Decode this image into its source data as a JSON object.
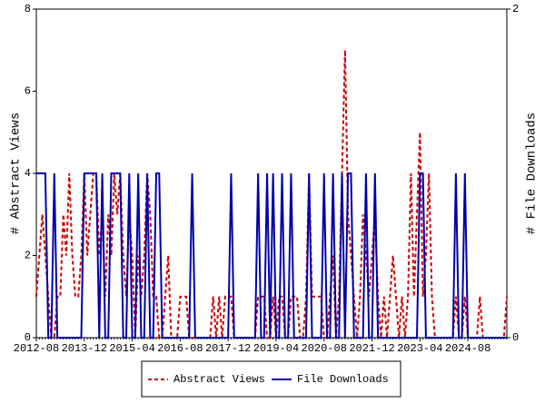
{
  "chart_data": {
    "type": "line",
    "ylabel": "# Abstract Views",
    "y2label": "# File Downloads",
    "categories": [
      "2012-08",
      null,
      null,
      null,
      null,
      null,
      null,
      null,
      null,
      null,
      null,
      null,
      null,
      null,
      null,
      null,
      "2013-12",
      null,
      null,
      null,
      null,
      null,
      null,
      null,
      null,
      null,
      null,
      null,
      null,
      null,
      null,
      null,
      "2015-04",
      null,
      null,
      null,
      null,
      null,
      null,
      null,
      null,
      null,
      null,
      null,
      null,
      null,
      null,
      null,
      "2016-08",
      null,
      null,
      null,
      null,
      null,
      null,
      null,
      null,
      null,
      null,
      null,
      null,
      null,
      null,
      null,
      "2017-12",
      null,
      null,
      null,
      null,
      null,
      null,
      null,
      null,
      null,
      null,
      null,
      null,
      null,
      null,
      null,
      "2019-04",
      null,
      null,
      null,
      null,
      null,
      null,
      null,
      null,
      null,
      null,
      null,
      null,
      null,
      null,
      null,
      "2020-08",
      null,
      null,
      null,
      null,
      null,
      null,
      null,
      null,
      null,
      null,
      null,
      null,
      null,
      null,
      null,
      "2021-12",
      null,
      null,
      null,
      null,
      null,
      null,
      null,
      null,
      null,
      null,
      null,
      null,
      null,
      null,
      null,
      "2023-04",
      null,
      null,
      null,
      null,
      null,
      null,
      null,
      null,
      null,
      null,
      null,
      null,
      null,
      null,
      null,
      "2024-08",
      null,
      null,
      null,
      null,
      null,
      null,
      null,
      null,
      null,
      null,
      null,
      null,
      null
    ],
    "series": [
      {
        "name": "Abstract Views",
        "color": "#cc0000",
        "dash": true,
        "values": [
          1,
          2,
          3,
          2,
          1,
          0,
          0,
          1,
          1,
          3,
          2,
          4,
          2,
          1,
          1,
          2,
          4,
          2,
          3,
          4,
          4,
          2,
          3,
          1,
          3,
          2,
          4,
          3,
          4,
          2,
          1,
          3,
          2,
          0,
          2,
          1,
          2,
          4,
          3,
          1,
          1,
          0,
          0,
          1,
          2,
          0,
          0,
          0,
          1,
          1,
          1,
          0,
          0,
          0,
          0,
          0,
          0,
          0,
          0,
          1,
          0,
          1,
          0,
          1,
          1,
          1,
          0,
          0,
          0,
          0,
          0,
          0,
          0,
          0,
          1,
          1,
          1,
          0,
          0,
          1,
          0,
          1,
          1,
          0,
          0,
          1,
          1,
          1,
          0,
          0,
          1,
          4,
          1,
          1,
          1,
          1,
          0,
          0,
          1,
          2,
          0,
          1,
          4,
          7,
          3,
          2,
          1,
          0,
          1,
          3,
          2,
          1,
          2,
          3,
          1,
          0,
          1,
          0,
          1,
          2,
          1,
          0,
          1,
          0,
          1,
          4,
          1,
          3,
          5,
          1,
          2,
          4,
          1,
          0,
          0,
          0,
          0,
          0,
          0,
          0,
          1,
          0,
          0,
          1,
          0,
          0,
          0,
          0,
          1,
          0,
          0,
          0,
          0,
          0,
          0,
          0,
          0,
          1
        ]
      },
      {
        "name": "File Downloads",
        "color": "#0000aa",
        "dash": false,
        "axis": "y2",
        "values": [
          1,
          1,
          1,
          1,
          0,
          0,
          1,
          0,
          0,
          0,
          0,
          0,
          0,
          0,
          0,
          0,
          1,
          1,
          1,
          1,
          1,
          0,
          1,
          0,
          0,
          1,
          1,
          1,
          1,
          0,
          0,
          1,
          0,
          0,
          1,
          0,
          0,
          1,
          0,
          0,
          1,
          1,
          0,
          0,
          0,
          0,
          0,
          0,
          0,
          0,
          0,
          0,
          1,
          0,
          0,
          0,
          0,
          0,
          0,
          0,
          0,
          0,
          0,
          0,
          0,
          1,
          0,
          0,
          0,
          0,
          0,
          0,
          0,
          0,
          1,
          0,
          0,
          1,
          0,
          1,
          0,
          0,
          1,
          0,
          0,
          1,
          0,
          0,
          0,
          0,
          0,
          1,
          0,
          0,
          0,
          0,
          1,
          0,
          0,
          1,
          0,
          0,
          1,
          0,
          1,
          1,
          0,
          0,
          0,
          0,
          1,
          0,
          0,
          1,
          0,
          0,
          0,
          0,
          0,
          0,
          0,
          0,
          0,
          0,
          0,
          0,
          0,
          0,
          1,
          1,
          0,
          0,
          0,
          0,
          0,
          0,
          0,
          0,
          0,
          0,
          1,
          0,
          0,
          1,
          0,
          0,
          0,
          0,
          0,
          0,
          0,
          0,
          0,
          0,
          0,
          0,
          0,
          0
        ]
      }
    ],
    "ylim": [
      0,
      8
    ],
    "yticks": [
      0,
      2,
      4,
      6,
      8
    ],
    "y2lim": [
      0,
      2
    ],
    "y2ticks": [
      0,
      2
    ]
  }
}
